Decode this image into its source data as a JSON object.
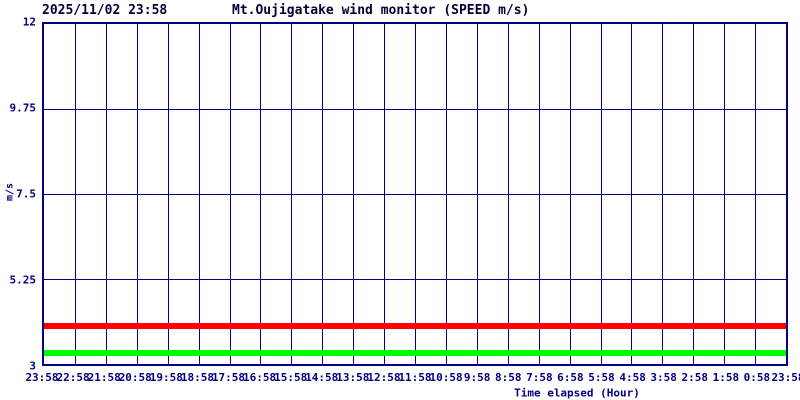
{
  "header": {
    "timestamp": "2025/11/02 23:58",
    "title": "Mt.Oujigatake wind monitor (SPEED m/s)"
  },
  "colors": {
    "background": "#ffffff",
    "grid": "#000080",
    "axis_text": "#000080",
    "header_text": "#000033",
    "red_line": "#ff0000",
    "green_line": "#00ff00"
  },
  "chart_data": {
    "type": "line",
    "title": "Mt.Oujigatake wind monitor (SPEED m/s)",
    "timestamp": "2025/11/02 23:58",
    "xlabel": "Time elapsed (Hour)",
    "ylabel": "m/s",
    "ylim": [
      3,
      12
    ],
    "yticks": [
      12,
      9.75,
      7.5,
      5.25,
      3
    ],
    "ytick_labels": [
      "12",
      "9.75",
      "7.5",
      "5.25",
      "3"
    ],
    "x_tick_labels": [
      "23:58",
      "22:58",
      "21:58",
      "20:58",
      "19:58",
      "18:58",
      "17:58",
      "16:58",
      "15:58",
      "14:58",
      "13:58",
      "12:58",
      "11:58",
      "10:58",
      "9:58",
      "8:58",
      "7:58",
      "6:58",
      "5:58",
      "4:58",
      "3:58",
      "2:58",
      "1:58",
      "0:58",
      "23:58"
    ],
    "grid": true,
    "legend_position": "none",
    "series": [
      {
        "name": "speed-line-red",
        "color": "#ff0000",
        "constant_value": 4.0,
        "values": [
          4.0,
          4.0,
          4.0,
          4.0,
          4.0,
          4.0,
          4.0,
          4.0,
          4.0,
          4.0,
          4.0,
          4.0,
          4.0,
          4.0,
          4.0,
          4.0,
          4.0,
          4.0,
          4.0,
          4.0,
          4.0,
          4.0,
          4.0,
          4.0,
          4.0
        ]
      },
      {
        "name": "speed-line-green",
        "color": "#00ff00",
        "constant_value": 3.3,
        "values": [
          3.3,
          3.3,
          3.3,
          3.3,
          3.3,
          3.3,
          3.3,
          3.3,
          3.3,
          3.3,
          3.3,
          3.3,
          3.3,
          3.3,
          3.3,
          3.3,
          3.3,
          3.3,
          3.3,
          3.3,
          3.3,
          3.3,
          3.3,
          3.3,
          3.3
        ]
      }
    ]
  }
}
